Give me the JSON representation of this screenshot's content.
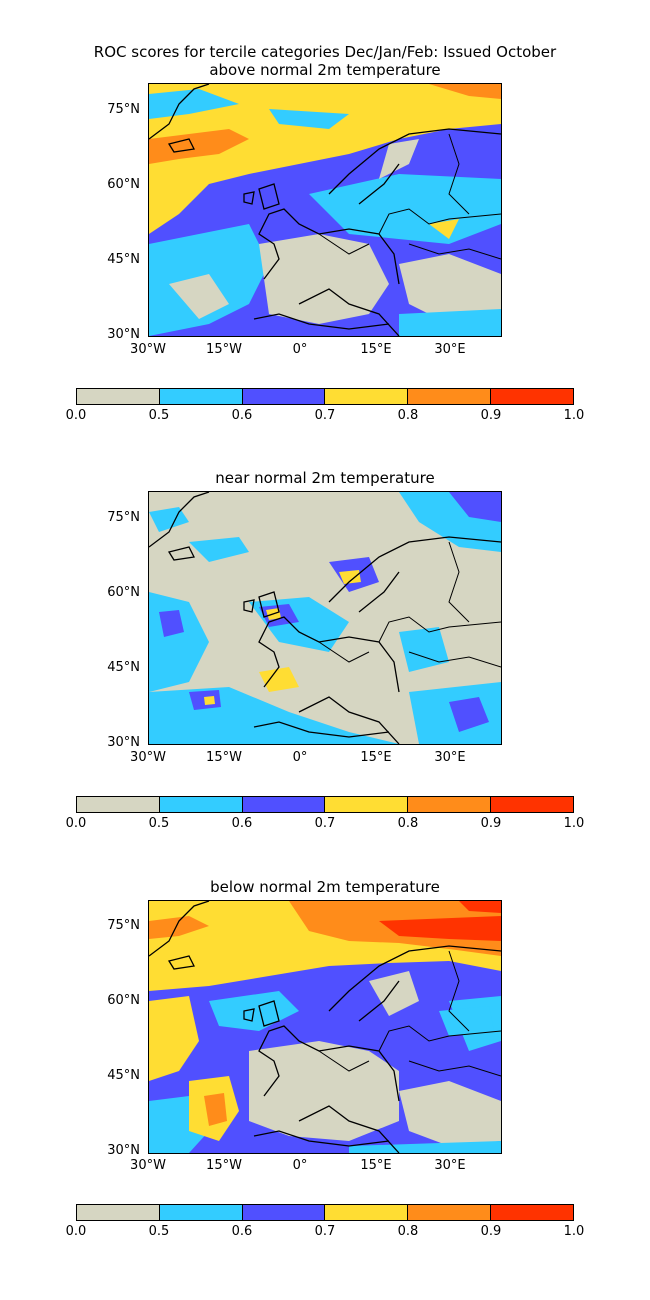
{
  "figure_title": "ROC scores for tercile categories Dec/Jan/Feb: Issued October",
  "colorbar": {
    "labels": [
      "0.0",
      "0.5",
      "0.6",
      "0.7",
      "0.8",
      "0.9",
      "1.0"
    ],
    "colors": [
      "#d6d6c2",
      "#33ccff",
      "#5050ff",
      "#ffdd33",
      "#ff8c1a",
      "#ff3300"
    ]
  },
  "axes": {
    "lat_labels": [
      "75°N",
      "60°N",
      "45°N",
      "30°N"
    ],
    "lon_labels": [
      "30°W",
      "15°W",
      "0°",
      "15°E",
      "30°E"
    ]
  },
  "panels": [
    {
      "subtitle": "above normal 2m temperature",
      "category": "above"
    },
    {
      "subtitle": "near normal 2m temperature",
      "category": "near"
    },
    {
      "subtitle": "below normal 2m temperature",
      "category": "below"
    }
  ]
}
